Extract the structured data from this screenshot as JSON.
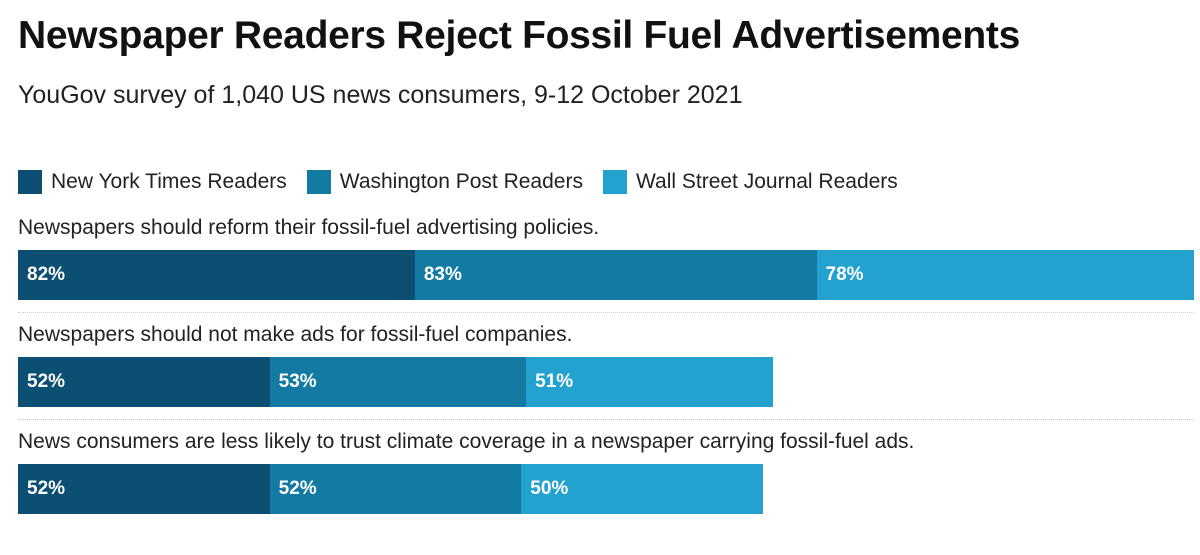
{
  "title": "Newspaper Readers Reject Fossil Fuel Advertisements",
  "subtitle": "YouGov survey of 1,040 US news consumers, 9-12 October 2021",
  "colors": {
    "nyt": "#0d4f73",
    "wapo": "#137aa4",
    "wsj": "#23a2d0"
  },
  "chart_data": {
    "type": "bar",
    "orientation": "horizontal",
    "stacked": true,
    "categories": [
      "Newspapers should reform their fossil-fuel advertising policies.",
      "Newspapers should not make ads for fossil-fuel companies.",
      "News consumers are less likely to trust climate coverage in a newspaper carrying fossil-fuel ads."
    ],
    "series": [
      {
        "name": "New York Times Readers",
        "values": [
          82,
          52,
          52
        ],
        "labels": [
          "82%",
          "52%",
          "52%"
        ],
        "color": "#0d4f73"
      },
      {
        "name": "Washington Post Readers",
        "values": [
          83,
          53,
          52
        ],
        "labels": [
          "83%",
          "53%",
          "52%"
        ],
        "color": "#137aa4"
      },
      {
        "name": "Wall Street Journal Readers",
        "values": [
          78,
          51,
          50
        ],
        "labels": [
          "78%",
          "51%",
          "50%"
        ],
        "color": "#23a2d0"
      }
    ],
    "legend_position": "top-left",
    "grid": false,
    "xlim": [
      0,
      243
    ]
  }
}
